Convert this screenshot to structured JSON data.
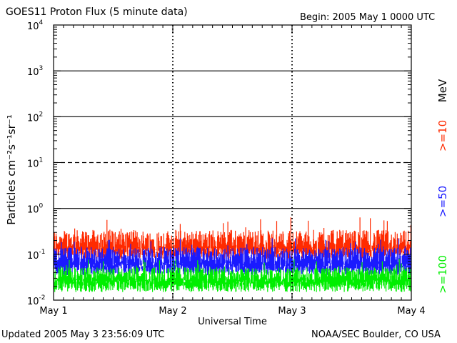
{
  "header": {
    "title": "GOES11 Proton Flux (5 minute data)",
    "begin": "Begin: 2005 May 1 0000 UTC"
  },
  "footer": {
    "updated": "Updated 2005 May  3 23:56:09 UTC",
    "credit": "NOAA/SEC Boulder, CO USA"
  },
  "colors": {
    "ge10": "#ff2a00",
    "ge50": "#1a1aff",
    "ge100": "#00ee00",
    "axis": "#000000"
  },
  "chart_data": {
    "type": "line",
    "xlabel": "Universal Time",
    "ylabel": "Particles cm⁻²s⁻¹sr⁻¹",
    "x_ticks": [
      "May 1",
      "May 2",
      "May 3",
      "May 4"
    ],
    "xlim": [
      0,
      3
    ],
    "ylim": [
      0.01,
      10000
    ],
    "yscale": "log",
    "y_ticks": [
      {
        "value": 0.01,
        "base": "10",
        "exp": "-2"
      },
      {
        "value": 0.1,
        "base": "10",
        "exp": "-1"
      },
      {
        "value": 1,
        "base": "10",
        "exp": "0"
      },
      {
        "value": 10,
        "base": "10",
        "exp": "1"
      },
      {
        "value": 100,
        "base": "10",
        "exp": "2"
      },
      {
        "value": 1000,
        "base": "10",
        "exp": "3"
      },
      {
        "value": 10000,
        "base": "10",
        "exp": "4"
      }
    ],
    "threshold_lines": [
      {
        "value": 1,
        "style": "solid"
      },
      {
        "value": 10,
        "style": "dashed"
      },
      {
        "value": 100,
        "style": "solid"
      },
      {
        "value": 1000,
        "style": "solid"
      }
    ],
    "legend_placement": "right",
    "legend_unit": "MeV",
    "series": [
      {
        "name": ">=10",
        "color": "#ff2a00",
        "typical": 0.15,
        "min": 0.08,
        "max": 0.65
      },
      {
        "name": ">=50",
        "color": "#1a1aff",
        "typical": 0.07,
        "min": 0.035,
        "max": 0.25
      },
      {
        "name": ">=100",
        "color": "#00ee00",
        "typical": 0.03,
        "min": 0.015,
        "max": 0.08
      }
    ]
  }
}
